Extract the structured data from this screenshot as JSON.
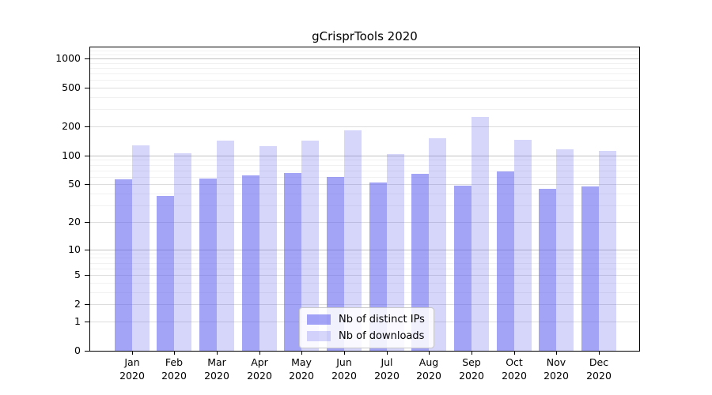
{
  "chart_data": {
    "type": "bar",
    "title": "gCrisprTools 2020",
    "year_label": "2020",
    "categories": [
      "Jan",
      "Feb",
      "Mar",
      "Apr",
      "May",
      "Jun",
      "Jul",
      "Aug",
      "Sep",
      "Oct",
      "Nov",
      "Dec"
    ],
    "series": [
      {
        "name": "Nb of distinct IPs",
        "values": [
          57,
          38,
          58,
          62,
          66,
          60,
          52,
          65,
          49,
          68,
          45,
          48
        ],
        "color": "#5A5AF08C"
      },
      {
        "name": "Nb of downloads",
        "values": [
          128,
          105,
          143,
          125,
          143,
          183,
          103,
          152,
          250,
          145,
          116,
          112
        ],
        "color": "#5A5AF040"
      }
    ],
    "yscale": "log1p",
    "yticks": [
      0,
      1,
      2,
      5,
      10,
      20,
      50,
      100,
      200,
      500,
      1000
    ],
    "ylim": [
      0,
      1300
    ],
    "grid": "both",
    "legend_position": "lower center",
    "grid_colors": {
      "decade": "#c2c2c2",
      "major": "#dddddd",
      "minor": "#f1f1f1"
    }
  }
}
